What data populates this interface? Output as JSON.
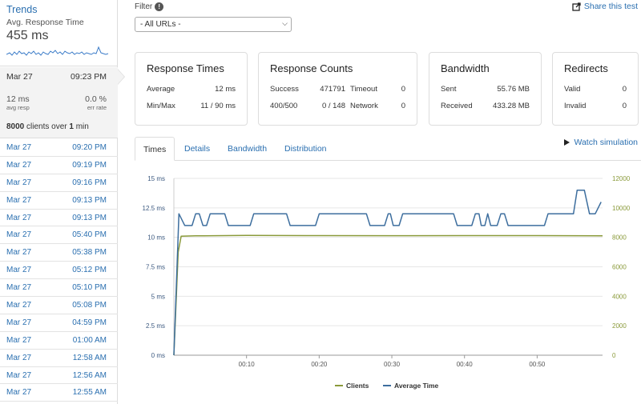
{
  "sidebar": {
    "trends": {
      "title": "Trends",
      "metric_label": "Avg. Response Time",
      "metric_value": "455 ms"
    },
    "active_run": {
      "date": "Mar 27",
      "time": "09:23 PM",
      "avg_resp": "12 ms",
      "avg_resp_label": "avg resp",
      "err_rate": "0.0 %",
      "err_rate_label": "err rate",
      "clients": "8000",
      "clients_text": " clients over ",
      "duration": "1",
      "duration_text": " min"
    },
    "runs": [
      {
        "date": "Mar 27",
        "time": "09:20 PM"
      },
      {
        "date": "Mar 27",
        "time": "09:19 PM"
      },
      {
        "date": "Mar 27",
        "time": "09:16 PM"
      },
      {
        "date": "Mar 27",
        "time": "09:13 PM"
      },
      {
        "date": "Mar 27",
        "time": "09:13 PM"
      },
      {
        "date": "Mar 27",
        "time": "05:40 PM"
      },
      {
        "date": "Mar 27",
        "time": "05:38 PM"
      },
      {
        "date": "Mar 27",
        "time": "05:12 PM"
      },
      {
        "date": "Mar 27",
        "time": "05:10 PM"
      },
      {
        "date": "Mar 27",
        "time": "05:08 PM"
      },
      {
        "date": "Mar 27",
        "time": "04:59 PM"
      },
      {
        "date": "Mar 27",
        "time": "01:00 AM"
      },
      {
        "date": "Mar 27",
        "time": "12:58 AM"
      },
      {
        "date": "Mar 27",
        "time": "12:56 AM"
      },
      {
        "date": "Mar 27",
        "time": "12:55 AM"
      }
    ]
  },
  "filter": {
    "label": "Filter",
    "info_icon": "info-icon",
    "selected": "- All URLs -"
  },
  "share": {
    "label": "Share this test",
    "icon": "share-icon"
  },
  "cards": {
    "response_times": {
      "title": "Response Times",
      "rows": [
        {
          "k": "Average",
          "v": "12 ms"
        },
        {
          "k": "Min/Max",
          "v": "11 / 90 ms"
        }
      ]
    },
    "response_counts": {
      "title": "Response Counts",
      "rows": [
        {
          "k": "Success",
          "v": "471791",
          "k2": "Timeout",
          "v2": "0"
        },
        {
          "k": "400/500",
          "v": "0 / 148",
          "k2": "Network",
          "v2": "0"
        }
      ]
    },
    "bandwidth": {
      "title": "Bandwidth",
      "rows": [
        {
          "k": "Sent",
          "v": "55.76 MB"
        },
        {
          "k": "Received",
          "v": "433.28 MB"
        }
      ]
    },
    "redirects": {
      "title": "Redirects",
      "rows": [
        {
          "k": "Valid",
          "v": "0"
        },
        {
          "k": "Invalid",
          "v": "0"
        }
      ]
    }
  },
  "tabs": [
    {
      "label": "Times",
      "selected": true
    },
    {
      "label": "Details"
    },
    {
      "label": "Bandwidth"
    },
    {
      "label": "Distribution"
    }
  ],
  "watch": {
    "label": "Watch simulation",
    "icon": "play-icon"
  },
  "colors": {
    "link": "#2a6fb0",
    "average_time": "#3d6e9e",
    "clients": "#8a9a3a"
  },
  "chart_data": {
    "type": "line",
    "x_unit": "seconds",
    "x_ticks": [
      "00:10",
      "00:20",
      "00:30",
      "00:40",
      "00:50"
    ],
    "x_tick_values": [
      10,
      20,
      30,
      40,
      50
    ],
    "xlim": [
      0,
      59
    ],
    "y_left_ticks": [
      "0 ms",
      "2.5 ms",
      "5 ms",
      "7.5 ms",
      "10 ms",
      "12.5 ms",
      "15 ms"
    ],
    "ylim_left": [
      0,
      15
    ],
    "y_right_ticks": [
      "0",
      "2000",
      "4000",
      "6000",
      "8000",
      "10000",
      "12000"
    ],
    "ylim_right": [
      0,
      12000
    ],
    "legend": [
      "Clients",
      "Average Time"
    ],
    "legend_position": "bottom",
    "series": [
      {
        "name": "Clients",
        "axis": "right",
        "points": [
          [
            0,
            0
          ],
          [
            0.6,
            7000
          ],
          [
            1,
            8080
          ],
          [
            3,
            8100
          ],
          [
            10,
            8130
          ],
          [
            20,
            8120
          ],
          [
            30,
            8110
          ],
          [
            40,
            8120
          ],
          [
            50,
            8120
          ],
          [
            59,
            8100
          ]
        ]
      },
      {
        "name": "Average Time",
        "axis": "left",
        "points": [
          [
            0,
            0
          ],
          [
            0.7,
            12
          ],
          [
            1.5,
            11
          ],
          [
            2.5,
            11
          ],
          [
            3,
            12
          ],
          [
            3.5,
            12
          ],
          [
            4,
            11
          ],
          [
            4.5,
            11
          ],
          [
            5,
            12
          ],
          [
            7,
            12
          ],
          [
            7.5,
            11
          ],
          [
            10.5,
            11
          ],
          [
            11,
            12
          ],
          [
            15.5,
            12
          ],
          [
            16,
            11
          ],
          [
            19.5,
            11
          ],
          [
            20,
            12
          ],
          [
            26.5,
            12
          ],
          [
            27,
            11
          ],
          [
            29,
            11
          ],
          [
            29.5,
            12
          ],
          [
            29.8,
            12
          ],
          [
            30.2,
            11
          ],
          [
            31,
            11
          ],
          [
            31.5,
            12
          ],
          [
            38.5,
            12
          ],
          [
            39,
            11
          ],
          [
            41,
            11
          ],
          [
            41.5,
            12
          ],
          [
            42,
            12
          ],
          [
            42.3,
            11
          ],
          [
            42.8,
            11
          ],
          [
            43.2,
            12
          ],
          [
            43.6,
            11
          ],
          [
            44.5,
            11
          ],
          [
            45,
            12
          ],
          [
            45.5,
            12
          ],
          [
            46,
            11
          ],
          [
            51,
            11
          ],
          [
            51.5,
            12
          ],
          [
            55,
            12
          ],
          [
            55.5,
            14
          ],
          [
            56.5,
            14
          ],
          [
            57.2,
            12
          ],
          [
            58,
            12
          ],
          [
            58.8,
            13
          ]
        ]
      }
    ]
  }
}
